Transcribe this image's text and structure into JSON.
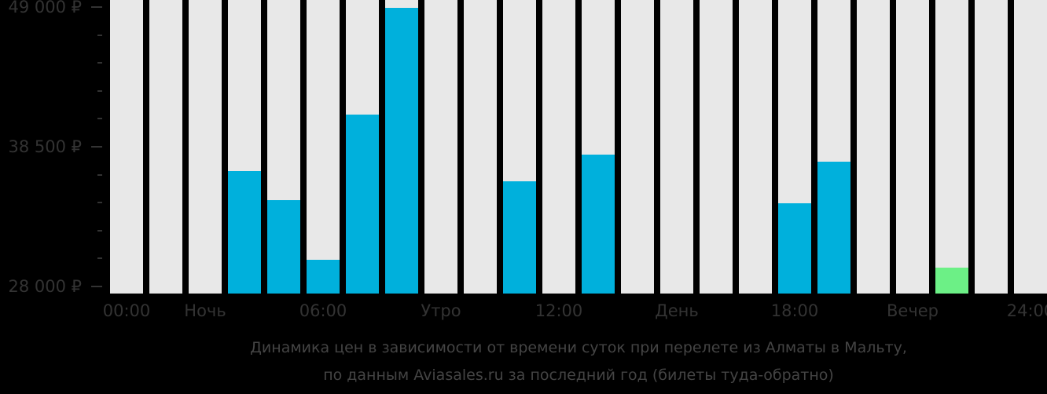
{
  "chart_data": {
    "type": "bar",
    "title": "Динамика цен в зависимости от времени суток при перелете из Алматы в Мальту, по данным Aviasales.ru за последний год (билеты туда-обратно)",
    "xlabel": "",
    "ylabel": "",
    "ylim": [
      28000,
      49000
    ],
    "grid": false,
    "legend": null,
    "categories": [
      "00",
      "01",
      "02",
      "03",
      "04",
      "05",
      "06",
      "07",
      "08",
      "09",
      "10",
      "11",
      "12",
      "13",
      "14",
      "15",
      "16",
      "17",
      "18",
      "19",
      "20",
      "21",
      "22",
      "23"
    ],
    "values": [
      null,
      null,
      null,
      36700,
      34500,
      30000,
      40900,
      48950,
      null,
      null,
      35900,
      null,
      37900,
      null,
      null,
      null,
      null,
      34250,
      37400,
      null,
      null,
      29400,
      null,
      null
    ],
    "bar_colors": {
      "normal": "#00b0dc",
      "min": "#6cf086",
      "empty": "#e8e8e8"
    },
    "min_index": 21,
    "y_ticks": [
      {
        "value": 49000,
        "label": "49 000 ₽"
      },
      {
        "value": 38500,
        "label": "38 500 ₽"
      },
      {
        "value": 28000,
        "label": "28 000 ₽"
      }
    ],
    "x_ticks": [
      {
        "pos": 0,
        "label": "00:00"
      },
      {
        "pos": 2,
        "label": "Ночь"
      },
      {
        "pos": 5,
        "label": "06:00"
      },
      {
        "pos": 8,
        "label": "Утро"
      },
      {
        "pos": 11,
        "label": "12:00"
      },
      {
        "pos": 14,
        "label": "День"
      },
      {
        "pos": 17,
        "label": "18:00"
      },
      {
        "pos": 20,
        "label": "Вечер"
      },
      {
        "pos": 23,
        "label": "24:00"
      }
    ]
  },
  "caption": {
    "line1": "Динамика цен в зависимости от времени суток при перелете из Алматы в Мальту,",
    "line2": "по данным Aviasales.ru за последний год (билеты туда-обратно)"
  }
}
